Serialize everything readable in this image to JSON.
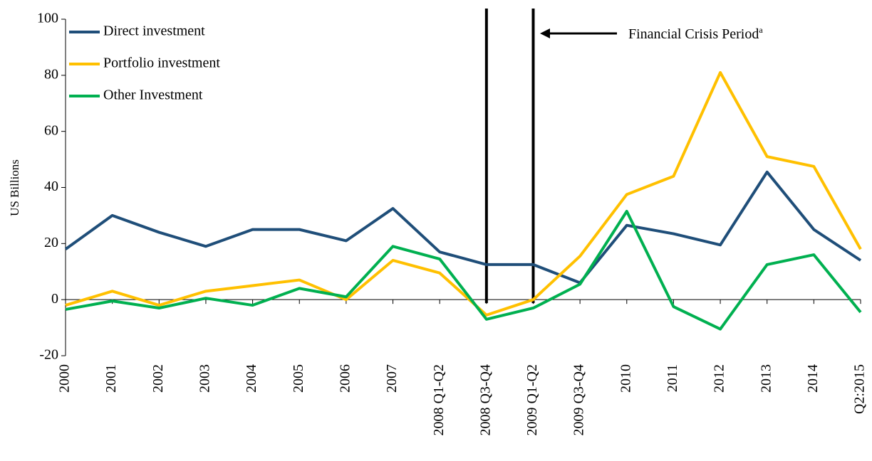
{
  "chart_data": {
    "type": "line",
    "y_label": "US Billions",
    "categories": [
      "2000",
      "2001",
      "2002",
      "2003",
      "2004",
      "2005",
      "2006",
      "2007",
      "2008 Q1-Q2",
      "2008 Q3-Q4",
      "2009 Q1-Q2",
      "2009 Q3-Q4",
      "2010",
      "2011",
      "2012",
      "2013",
      "2014",
      "Q2:2015"
    ],
    "series": [
      {
        "name": "Direct investment",
        "color": "#1f4e79",
        "values": [
          18,
          30,
          24,
          19,
          25,
          25,
          21,
          32.5,
          17,
          12.5,
          12.5,
          6,
          26.5,
          23.5,
          19.5,
          45.5,
          25,
          14
        ]
      },
      {
        "name": "Portfolio investment",
        "color": "#ffc000",
        "values": [
          -2,
          3,
          -2,
          3,
          5,
          7,
          0,
          14,
          9.5,
          -5.5,
          0,
          15.5,
          37.5,
          44,
          81,
          51,
          47.5,
          18
        ]
      },
      {
        "name": "Other Investment",
        "color": "#00b050",
        "values": [
          -3.5,
          -0.5,
          -3,
          0.5,
          -2,
          4,
          1,
          19,
          14.5,
          -7,
          -3,
          5.5,
          31.5,
          -2.5,
          -10.5,
          12.5,
          16,
          -4.5
        ]
      }
    ],
    "ylim": [
      -20,
      100
    ],
    "yticks": [
      -20,
      0,
      20,
      40,
      60,
      80,
      100
    ],
    "annotation": {
      "text": "Financial  Crisis  Period",
      "superscript": "a"
    },
    "legend": "top-left",
    "grid": false
  }
}
